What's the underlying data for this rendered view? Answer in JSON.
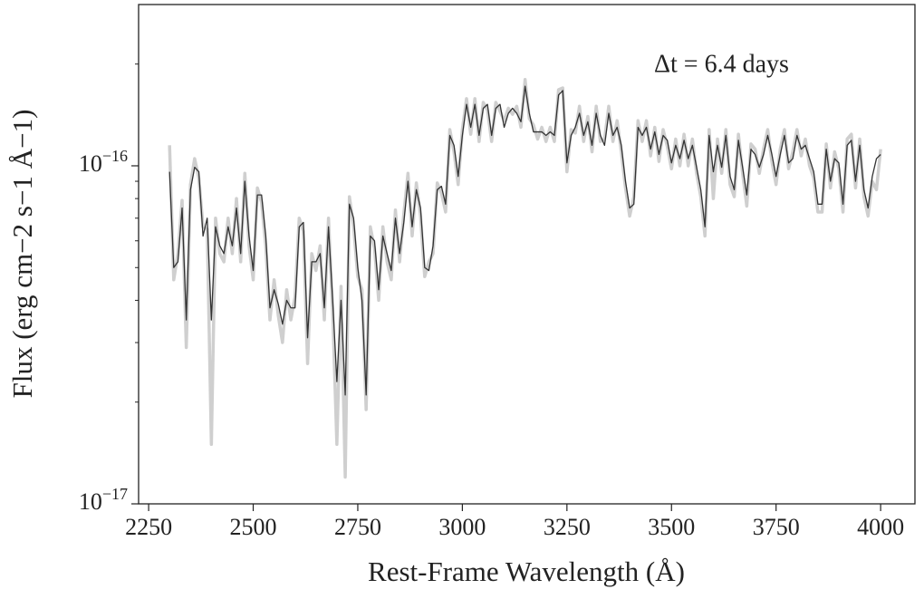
{
  "chart_data": {
    "type": "line",
    "xlabel": "Rest-Frame Wavelength (Å)",
    "ylabel": "Flux (erg cm−2 s−1 Å−1)",
    "annotation": "Δt = 6.4 days",
    "yscale": "log",
    "xlim": [
      2226,
      4082
    ],
    "ylim": [
      1e-17,
      3e-16
    ],
    "xticks": [
      2250,
      2500,
      2750,
      3000,
      3250,
      3500,
      3750,
      4000
    ],
    "yticks": [
      {
        "value": 1e-17,
        "label": "10−17"
      },
      {
        "value": 1e-16,
        "label": "10−16"
      }
    ],
    "yminorticks": [
      2e-17,
      3e-17,
      4e-17,
      5e-17,
      6e-17,
      7e-17,
      8e-17,
      9e-17,
      2e-16
    ],
    "x": [
      2300,
      2310,
      2320,
      2330,
      2340,
      2350,
      2360,
      2370,
      2380,
      2390,
      2400,
      2410,
      2420,
      2430,
      2440,
      2450,
      2460,
      2470,
      2480,
      2490,
      2500,
      2510,
      2520,
      2530,
      2540,
      2550,
      2560,
      2570,
      2580,
      2590,
      2600,
      2610,
      2620,
      2630,
      2640,
      2650,
      2660,
      2670,
      2680,
      2690,
      2700,
      2710,
      2720,
      2730,
      2740,
      2750,
      2760,
      2770,
      2780,
      2790,
      2800,
      2810,
      2820,
      2830,
      2840,
      2850,
      2860,
      2870,
      2880,
      2890,
      2900,
      2910,
      2920,
      2930,
      2940,
      2950,
      2960,
      2970,
      2980,
      2990,
      3000,
      3010,
      3020,
      3030,
      3040,
      3050,
      3060,
      3070,
      3080,
      3090,
      3100,
      3110,
      3120,
      3130,
      3140,
      3150,
      3160,
      3170,
      3180,
      3190,
      3200,
      3210,
      3220,
      3230,
      3240,
      3250,
      3260,
      3270,
      3280,
      3290,
      3300,
      3310,
      3320,
      3330,
      3340,
      3350,
      3360,
      3370,
      3380,
      3390,
      3400,
      3410,
      3420,
      3430,
      3440,
      3450,
      3460,
      3470,
      3480,
      3490,
      3500,
      3510,
      3520,
      3530,
      3540,
      3550,
      3560,
      3570,
      3580,
      3590,
      3600,
      3610,
      3620,
      3630,
      3640,
      3650,
      3660,
      3670,
      3680,
      3690,
      3700,
      3710,
      3720,
      3730,
      3740,
      3750,
      3760,
      3770,
      3780,
      3790,
      3800,
      3810,
      3820,
      3830,
      3840,
      3850,
      3860,
      3870,
      3880,
      3890,
      3900,
      3910,
      3920,
      3930,
      3940,
      3950,
      3960,
      3970,
      3980,
      3990,
      4000
    ],
    "series": [
      {
        "color": "#cfcfcf",
        "width": 3.5,
        "values": [
          1.15e-16,
          4.6e-17,
          5.5e-17,
          7.9e-17,
          2.9e-17,
          8.8e-17,
          1.05e-16,
          9.2e-17,
          6.6e-17,
          6.5e-17,
          1.5e-17,
          7e-17,
          5.5e-17,
          5.2e-17,
          7e-17,
          5.5e-17,
          8e-17,
          5.2e-17,
          9.5e-17,
          5.8e-17,
          4.6e-17,
          8.6e-17,
          7.8e-17,
          5.8e-17,
          3.5e-17,
          4.6e-17,
          3.6e-17,
          3e-17,
          4.3e-17,
          3.5e-17,
          4.1e-17,
          7e-17,
          6.4e-17,
          2.6e-17,
          5.5e-17,
          4.9e-17,
          5.8e-17,
          3.5e-17,
          7e-17,
          3.7e-17,
          1.5e-17,
          4.4e-17,
          1.2e-17,
          8.1e-17,
          6.6e-17,
          4.7e-17,
          4.3e-17,
          1.9e-17,
          6.6e-17,
          5.7e-17,
          4e-17,
          6.6e-17,
          5.2e-17,
          4.6e-17,
          7.4e-17,
          5.2e-17,
          7.2e-17,
          9.5e-17,
          6.2e-17,
          8.9e-17,
          7.1e-17,
          4.7e-17,
          5.2e-17,
          5.5e-17,
          8.9e-17,
          8.3e-17,
          7.3e-17,
          1.28e-16,
          1.1e-16,
          8.8e-17,
          1.28e-16,
          1.58e-16,
          1.24e-16,
          1.58e-16,
          1.18e-16,
          1.54e-16,
          1.46e-16,
          1.18e-16,
          1.54e-16,
          1.45e-16,
          1.36e-16,
          1.48e-16,
          1.42e-16,
          1.5e-16,
          1.3e-16,
          1.8e-16,
          1.38e-16,
          1.32e-16,
          1.2e-16,
          1.3e-16,
          1.18e-16,
          1.3e-16,
          1.18e-16,
          1.68e-16,
          1.7e-16,
          9.6e-17,
          1.28e-16,
          1.25e-16,
          1.5e-16,
          1.18e-16,
          1.4e-16,
          1.1e-16,
          1.5e-16,
          1.18e-16,
          1.2e-16,
          1.5e-16,
          1.18e-16,
          1.36e-16,
          1.1e-16,
          8.6e-17,
          7.1e-17,
          8.1e-17,
          1.36e-16,
          1.18e-16,
          1.36e-16,
          1.07e-16,
          1.3e-16,
          1.03e-16,
          1.28e-16,
          1.14e-16,
          9.8e-17,
          1.2e-16,
          1e-16,
          1.24e-16,
          1e-16,
          1.2e-16,
          9.5e-17,
          8.1e-17,
          6.2e-17,
          1.28e-16,
          8e-17,
          1.2e-16,
          9.5e-17,
          1.28e-16,
          8.8e-17,
          8.1e-17,
          1.24e-16,
          9.5e-17,
          7.6e-17,
          1.16e-16,
          1.12e-16,
          9.5e-17,
          1.12e-16,
          1.28e-16,
          1.03e-16,
          8.8e-17,
          1.12e-16,
          1.28e-16,
          9.8e-17,
          1.1e-16,
          1.28e-16,
          1.07e-16,
          1.2e-16,
          1e-16,
          9.2e-17,
          7.3e-17,
          7.3e-17,
          1.16e-16,
          8.6e-17,
          1.1e-16,
          9.8e-17,
          7.3e-17,
          1.2e-16,
          1.24e-16,
          8.6e-17,
          1.2e-16,
          8.1e-17,
          7.1e-17,
          9e-17,
          8.5e-17,
          1.12e-16
        ]
      },
      {
        "color": "#333333",
        "width": 1.3,
        "values": [
          9.6e-17,
          5e-17,
          5.2e-17,
          7.5e-17,
          3.5e-17,
          8.5e-17,
          9.9e-17,
          9.6e-17,
          6.2e-17,
          7e-17,
          3.5e-17,
          6.6e-17,
          5.8e-17,
          5.5e-17,
          6.6e-17,
          5.8e-17,
          7.5e-17,
          5.5e-17,
          9e-17,
          6.2e-17,
          4.9e-17,
          8.2e-17,
          8.2e-17,
          6.2e-17,
          3.8e-17,
          4.3e-17,
          3.9e-17,
          3.4e-17,
          4e-17,
          3.8e-17,
          3.8e-17,
          6.6e-17,
          6.8e-17,
          3.1e-17,
          5.2e-17,
          5.2e-17,
          5.5e-17,
          3.8e-17,
          6.6e-17,
          4e-17,
          2.3e-17,
          4e-17,
          2.1e-17,
          7.7e-17,
          7e-17,
          5e-17,
          4e-17,
          2.1e-17,
          6.2e-17,
          6e-17,
          4.3e-17,
          6.2e-17,
          5.5e-17,
          4.9e-17,
          7e-17,
          5.5e-17,
          6.8e-17,
          9e-17,
          6.6e-17,
          8.5e-17,
          7.5e-17,
          5e-17,
          4.9e-17,
          5.8e-17,
          8.5e-17,
          8.7e-17,
          7.7e-17,
          1.23e-16,
          1.15e-16,
          9.3e-17,
          1.23e-16,
          1.52e-16,
          1.3e-16,
          1.52e-16,
          1.23e-16,
          1.48e-16,
          1.52e-16,
          1.23e-16,
          1.48e-16,
          1.52e-16,
          1.3e-16,
          1.43e-16,
          1.48e-16,
          1.43e-16,
          1.35e-16,
          1.72e-16,
          1.43e-16,
          1.26e-16,
          1.26e-16,
          1.26e-16,
          1.23e-16,
          1.26e-16,
          1.23e-16,
          1.62e-16,
          1.67e-16,
          1.02e-16,
          1.23e-16,
          1.3e-16,
          1.43e-16,
          1.23e-16,
          1.35e-16,
          1.15e-16,
          1.43e-16,
          1.23e-16,
          1.15e-16,
          1.43e-16,
          1.23e-16,
          1.3e-16,
          1.15e-16,
          9e-17,
          7.5e-17,
          7.7e-17,
          1.3e-16,
          1.23e-16,
          1.3e-16,
          1.12e-16,
          1.26e-16,
          1.08e-16,
          1.23e-16,
          1.19e-16,
          1.02e-16,
          1.15e-16,
          1.05e-16,
          1.19e-16,
          1.05e-16,
          1.15e-16,
          9.9e-17,
          8.5e-17,
          6.6e-17,
          1.23e-16,
          9.6e-17,
          1.15e-16,
          9.9e-17,
          1.23e-16,
          9.3e-17,
          8.5e-17,
          1.19e-16,
          9.9e-17,
          8.2e-17,
          1.12e-16,
          1.08e-16,
          9.9e-17,
          1.08e-16,
          1.23e-16,
          1.08e-16,
          9.3e-17,
          1.08e-16,
          1.23e-16,
          1.02e-16,
          1.05e-16,
          1.23e-16,
          1.12e-16,
          1.15e-16,
          1.05e-16,
          9.6e-17,
          7.7e-17,
          7.7e-17,
          1.12e-16,
          9e-17,
          1.05e-16,
          1.02e-16,
          7.7e-17,
          1.15e-16,
          1.19e-16,
          9e-17,
          1.15e-16,
          8.5e-17,
          7.5e-17,
          9.3e-17,
          1.05e-16,
          1.08e-16
        ]
      }
    ]
  }
}
